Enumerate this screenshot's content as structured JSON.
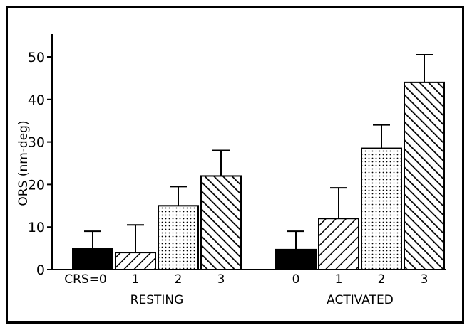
{
  "chart_data": {
    "type": "bar",
    "ylabel": "ORS (nm-deg)",
    "ylim": [
      0,
      50
    ],
    "yticks": [
      0,
      10,
      20,
      30,
      40,
      50
    ],
    "x_prefix": "CRS=",
    "groups": [
      {
        "label": "RESTING",
        "categories": [
          "0",
          "1",
          "2",
          "3"
        ],
        "values": [
          5,
          4,
          15,
          22
        ],
        "error_upper": [
          9,
          10.5,
          19.5,
          28
        ]
      },
      {
        "label": "ACTIVATED",
        "categories": [
          "0",
          "1",
          "2",
          "3"
        ],
        "values": [
          4.7,
          12,
          28.5,
          44
        ],
        "error_upper": [
          9,
          19.2,
          34,
          50.5
        ]
      }
    ],
    "patterns": [
      "solid",
      "diagonal-hatch-forward",
      "dotted",
      "diagonal-hatch-backward"
    ]
  }
}
